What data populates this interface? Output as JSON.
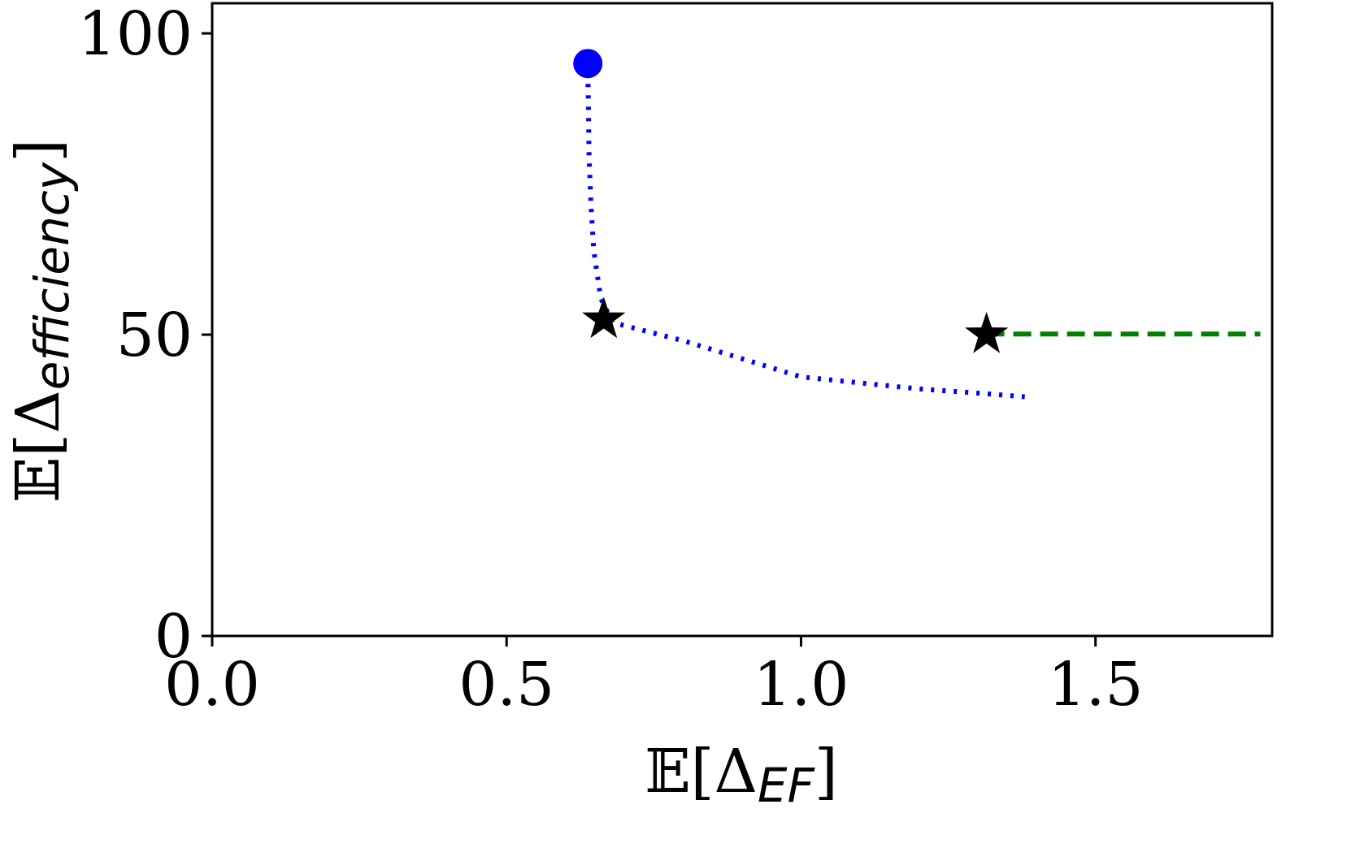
{
  "chart_data": {
    "type": "line",
    "xlabel": {
      "prefix": "𝔼[Δ",
      "subscript": "EF",
      "suffix": "]"
    },
    "ylabel": {
      "prefix": "𝔼[Δ",
      "subscript": "efficiency",
      "suffix": "]"
    },
    "xlim": [
      0.0,
      1.8
    ],
    "ylim": [
      0,
      105
    ],
    "xticks": [
      0.0,
      0.5,
      1.0,
      1.5
    ],
    "xtick_labels": [
      "0.0",
      "0.5",
      "1.0",
      "1.5"
    ],
    "yticks": [
      0,
      50,
      100
    ],
    "ytick_labels": [
      "0",
      "50",
      "100"
    ],
    "grid": false,
    "legend": "none",
    "series": [
      {
        "color": "#0000ff",
        "linestyle": "dotted",
        "x": [
          0.638,
          0.639,
          0.64,
          0.643,
          0.648,
          0.66,
          0.68,
          0.72,
          0.8,
          0.9,
          1.0,
          1.1,
          1.2,
          1.3,
          1.38
        ],
        "y": [
          93.5,
          88.0,
          80.0,
          72.0,
          64.0,
          56.0,
          52.0,
          51.0,
          49.0,
          46.0,
          43.0,
          42.0,
          41.0,
          40.3,
          39.7
        ]
      },
      {
        "color": "#008000",
        "linestyle": "dashed",
        "x": [
          1.315,
          1.4,
          1.5,
          1.6,
          1.7,
          1.78
        ],
        "y": [
          50.1,
          50.1,
          50.1,
          50.1,
          50.1,
          50.1
        ]
      }
    ],
    "markers": [
      {
        "shape": "circle",
        "color": "#0000ff",
        "x": 0.638,
        "y": 95.0
      },
      {
        "shape": "star",
        "color": "#000000",
        "x": 0.665,
        "y": 52.5
      },
      {
        "shape": "star",
        "color": "#000000",
        "x": 1.315,
        "y": 50.0
      }
    ]
  }
}
